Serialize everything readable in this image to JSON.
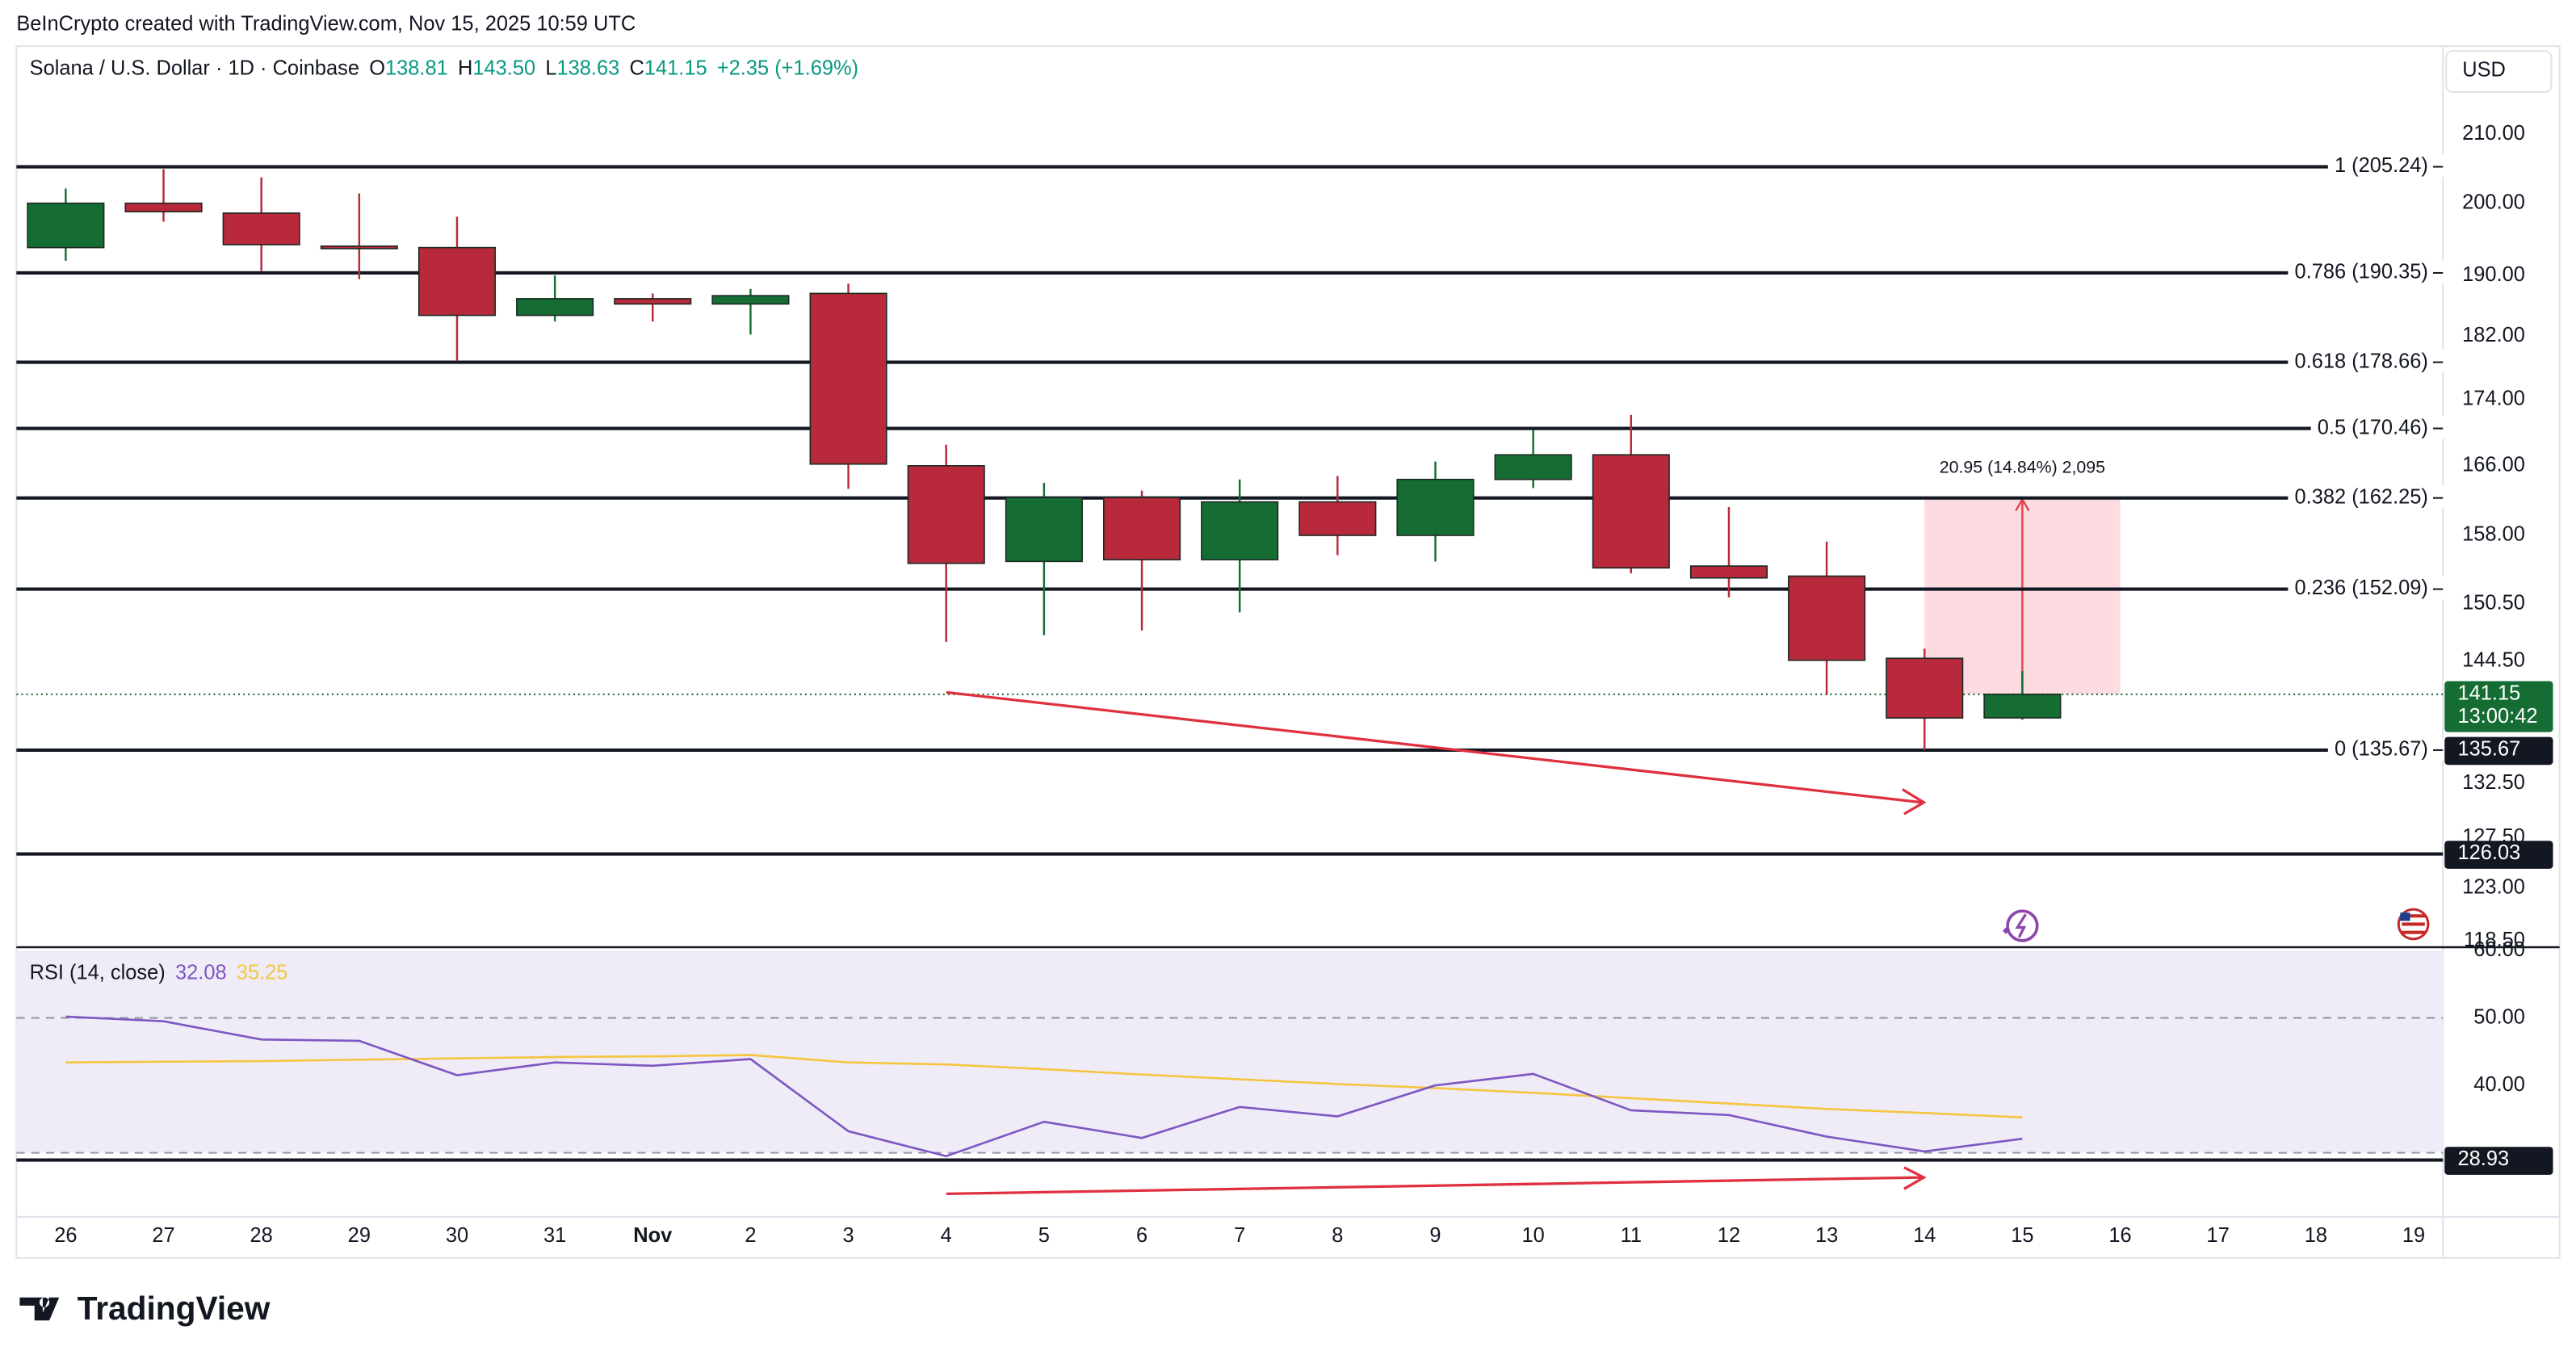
{
  "header": {
    "credit": "BeInCrypto created with TradingView.com, Nov 15, 2025 10:59 UTC"
  },
  "currency_button": "USD",
  "footer": {
    "logo": "TradingView"
  },
  "chart_data": [
    {
      "type": "candlestick",
      "log": true,
      "grid": false,
      "legend": {
        "symbol": "Solana / U.S. Dollar · 1D · Coinbase",
        "fields": [
          {
            "key": "O",
            "value": "138.81"
          },
          {
            "key": "H",
            "value": "143.50"
          },
          {
            "key": "L",
            "value": "138.63"
          },
          {
            "key": "C",
            "value": "141.15"
          }
        ],
        "change": "+2.35 (+1.69%)"
      },
      "categories": [
        "26",
        "27",
        "28",
        "29",
        "30",
        "31",
        "Nov",
        "2",
        "3",
        "4",
        "5",
        "6",
        "7",
        "8",
        "9",
        "10",
        "11",
        "12",
        "13",
        "14",
        "15",
        "16",
        "17",
        "18",
        "19"
      ],
      "up_color": "#156d34",
      "down_color": "#b8293b",
      "open": [
        193.8,
        200.0,
        198.6,
        194.0,
        193.8,
        184.7,
        186.9,
        186.2,
        187.6,
        166.0,
        155.1,
        162.3,
        155.3,
        161.8,
        158.0,
        164.4,
        167.3,
        154.6,
        153.5,
        144.8,
        138.81,
        null,
        null,
        null,
        null
      ],
      "high": [
        202.1,
        204.9,
        203.7,
        201.4,
        198.1,
        190.0,
        187.6,
        188.2,
        188.9,
        168.5,
        164.0,
        163.1,
        164.4,
        164.8,
        166.5,
        170.3,
        172.1,
        161.2,
        157.3,
        145.8,
        143.5,
        null,
        null,
        null,
        null
      ],
      "low": [
        192.0,
        197.4,
        190.6,
        189.5,
        178.8,
        183.9,
        183.9,
        182.2,
        163.3,
        146.5,
        147.2,
        147.7,
        149.6,
        155.8,
        155.1,
        163.4,
        153.8,
        151.2,
        141.1,
        135.67,
        138.63,
        null,
        null,
        null,
        null
      ],
      "close": [
        200.0,
        198.8,
        194.2,
        193.8,
        184.7,
        186.9,
        186.2,
        187.3,
        166.2,
        154.9,
        162.3,
        155.3,
        161.8,
        158.0,
        164.4,
        167.3,
        154.4,
        153.3,
        144.6,
        138.8,
        141.15,
        null,
        null,
        null,
        null
      ],
      "ylim": [
        118.1,
        223.6
      ],
      "yticks": [
        {
          "value": 118.5,
          "label": "118.50"
        },
        {
          "value": 123,
          "label": "123.00"
        },
        {
          "value": 127.5,
          "label": "127.50"
        },
        {
          "value": 132.5,
          "label": "132.50"
        },
        {
          "value": 144.5,
          "label": "144.50"
        },
        {
          "value": 150.5,
          "label": "150.50"
        },
        {
          "value": 158,
          "label": "158.00"
        },
        {
          "value": 166,
          "label": "166.00"
        },
        {
          "value": 174,
          "label": "174.00"
        },
        {
          "value": 182,
          "label": "182.00"
        },
        {
          "value": 190,
          "label": "190.00"
        },
        {
          "value": 200,
          "label": "200.00"
        },
        {
          "value": 210,
          "label": "210.00"
        }
      ],
      "fib_levels": [
        {
          "label": "1 (205.24)",
          "value": 205.24
        },
        {
          "label": "0.786 (190.35)",
          "value": 190.35
        },
        {
          "label": "0.618 (178.66)",
          "value": 178.66
        },
        {
          "label": "0.5 (170.46)",
          "value": 170.46
        },
        {
          "label": "0.382 (162.25)",
          "value": 162.25
        },
        {
          "label": "0.236 (152.09)",
          "value": 152.09
        },
        {
          "label": "0 (135.67)",
          "value": 135.67
        }
      ],
      "hline": 126.03,
      "last_price": {
        "countdown": "13:00:42",
        "color": "#156d34"
      },
      "measure": {
        "label": "20.95 (14.84%) 2,095",
        "from": 141.15,
        "to": 162.1,
        "color": "#fbd3d8",
        "arrow_color": "#e0454f"
      }
    },
    {
      "type": "line",
      "title": "RSI (14, close)",
      "ylim": [
        20.5,
        60
      ],
      "yticks": [
        {
          "value": 60,
          "label": "60.00"
        },
        {
          "value": 50,
          "label": "50.00"
        },
        {
          "value": 40,
          "label": "40.00"
        }
      ],
      "bands": [
        50,
        30
      ],
      "band_color": "#efecf8",
      "hline": 28.93,
      "series": [
        {
          "color": "#7e57c2",
          "values": [
            50.2,
            49.5,
            46.8,
            46.6,
            41.5,
            43.4,
            42.9,
            43.9,
            33.2,
            29.5,
            34.6,
            32.2,
            36.8,
            35.4,
            40.0,
            41.7,
            36.3,
            35.6,
            32.4,
            30.2,
            32.08,
            null,
            null,
            null,
            null
          ]
        },
        {
          "color": "#f5c542",
          "values": [
            43.4,
            43.5,
            43.6,
            43.8,
            44.0,
            44.2,
            44.3,
            44.5,
            43.4,
            43.1,
            42.4,
            41.6,
            40.9,
            40.2,
            39.6,
            38.9,
            38.1,
            37.3,
            36.5,
            35.9,
            35.25,
            null,
            null,
            null,
            null
          ]
        }
      ]
    }
  ]
}
